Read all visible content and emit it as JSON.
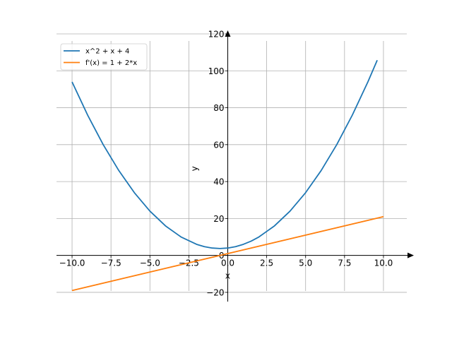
{
  "chart_data": {
    "type": "line",
    "xlabel": "x",
    "ylabel": "y",
    "xlim": [
      -11.0,
      11.5
    ],
    "ylim": [
      -25,
      120
    ],
    "x_ticks": [
      -10.0,
      -7.5,
      -5.0,
      -2.5,
      0.0,
      2.5,
      5.0,
      7.5,
      10.0
    ],
    "x_tick_labels": [
      "−10.0",
      "−7.5",
      "−5.0",
      "−2.5",
      "0.0",
      "2.5",
      "5.0",
      "7.5",
      "10.0"
    ],
    "y_ticks": [
      -20,
      0,
      20,
      40,
      60,
      80,
      100,
      120
    ],
    "y_tick_labels": [
      "−20",
      "0",
      "20",
      "40",
      "60",
      "80",
      "100",
      "120"
    ],
    "grid": true,
    "legend_position": "top-left",
    "series": [
      {
        "name": "x^2 + x + 4",
        "color": "#1f77b4",
        "x": [
          -10,
          -9,
          -8,
          -7,
          -6,
          -5,
          -4,
          -3,
          -2,
          -1.5,
          -1,
          -0.5,
          0,
          0.5,
          1,
          1.5,
          2,
          3,
          4,
          5,
          6,
          7,
          8,
          9,
          9.6
        ],
        "y": [
          94,
          76,
          60,
          46,
          34,
          24,
          16,
          10,
          6,
          4.75,
          4,
          3.75,
          4,
          4.75,
          6,
          7.75,
          10,
          16,
          24,
          34,
          46,
          60,
          76,
          94,
          105.76
        ]
      },
      {
        "name": "f'(x) = 1 + 2*x",
        "color": "#ff7f0e",
        "x": [
          -10,
          10
        ],
        "y": [
          -19,
          21
        ]
      }
    ]
  }
}
